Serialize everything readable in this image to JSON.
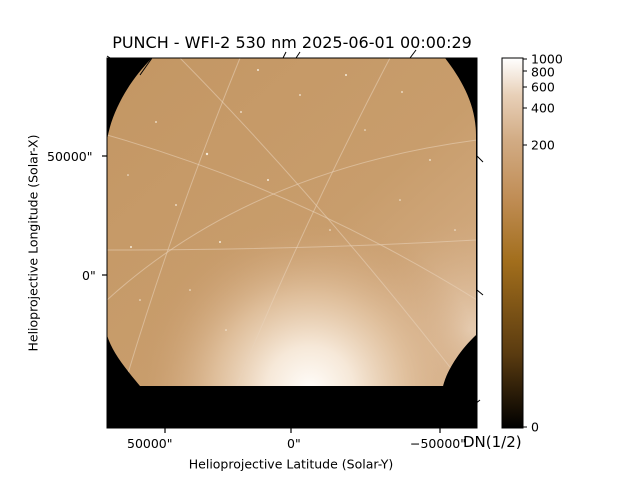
{
  "title": "PUNCH - WFI-2 530 nm 2025-06-01 00:00:29",
  "axes": {
    "ylabel": "Helioprojective Longitude (Solar-X)",
    "xlabel": "Helioprojective Latitude (Solar-Y)",
    "y_ticks": [
      "50000\"",
      "0\""
    ],
    "x_ticks": [
      "50000\"",
      "0\"",
      "−50000\""
    ]
  },
  "colorbar": {
    "unit_label": "DN(1/2)",
    "scale": "sqrt",
    "range": [
      0,
      1000
    ],
    "tick_labels": [
      "1000",
      "800",
      "600",
      "400",
      "200",
      "0"
    ],
    "tick_values": [
      1000,
      800,
      600,
      400,
      200,
      0
    ],
    "colors": [
      "#000000",
      "#5a3b10",
      "#a26e1c",
      "#c08d55",
      "#d2ac85",
      "#e8d0b8",
      "#ffffff"
    ]
  },
  "image": {
    "background": "#000000",
    "field_color": "#c5996a",
    "glow_color": "#fdf8f1"
  }
}
